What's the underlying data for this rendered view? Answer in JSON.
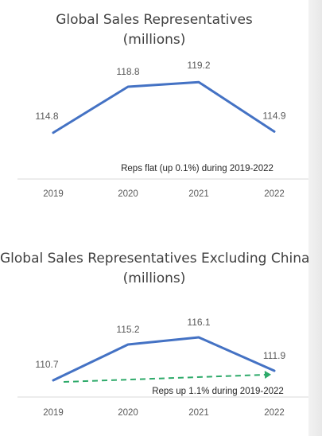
{
  "chart_data": [
    {
      "type": "line",
      "title": "Global Sales Representatives",
      "subtitle": "(millions)",
      "categories": [
        "2019",
        "2020",
        "2021",
        "2022"
      ],
      "series": [
        {
          "values": [
            114.8,
            118.8,
            119.2,
            114.9
          ],
          "color": "#4472c4"
        }
      ],
      "annotations": [
        {
          "text": "Reps flat (up 0.1%) during 2019-2022"
        }
      ],
      "ylim": [
        112.5,
        121.5
      ],
      "grid": false,
      "legend": "none"
    },
    {
      "type": "line",
      "title": "Global Sales Representatives Excluding China",
      "subtitle": "(millions)",
      "categories": [
        "2019",
        "2020",
        "2021",
        "2022"
      ],
      "series": [
        {
          "values": [
            110.7,
            115.2,
            116.1,
            111.9
          ],
          "color": "#4472c4"
        }
      ],
      "trend": {
        "from": 110.7,
        "to": 111.9,
        "color": "#2eaa6a",
        "style": "dashed-arrow"
      },
      "annotations": [
        {
          "text": "Reps up 1.1% during 2019-2022"
        }
      ],
      "ylim": [
        108.5,
        118.5
      ],
      "grid": false,
      "legend": "none"
    }
  ]
}
